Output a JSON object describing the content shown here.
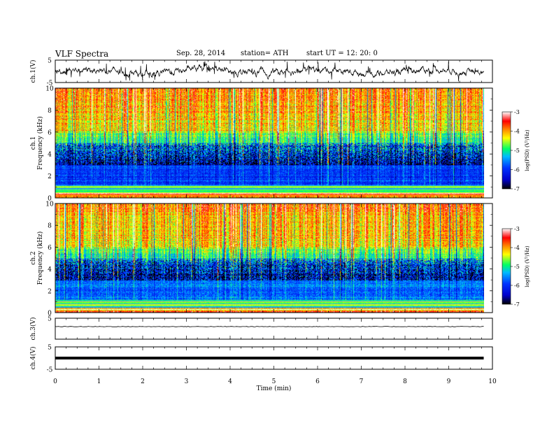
{
  "header": {
    "title": "VLF Spectra",
    "date": "Sep. 28, 2014",
    "station": "station= ATH",
    "start": "start  UT =   12: 20: 0"
  },
  "colors": {
    "spectrogram_scale": [
      "#000000",
      "#0000cc",
      "#0033ff",
      "#00bbff",
      "#00ff66",
      "#ffff00",
      "#ff8800",
      "#ff0000",
      "#ffffff"
    ],
    "trace": "#000000"
  },
  "chart_data": [
    {
      "type": "line",
      "panel": "ch1-waveform",
      "ylabel": "ch.1(V)",
      "ylim": [
        -5,
        5
      ],
      "yticks": [
        "5",
        "-5"
      ],
      "xlim": [
        0,
        10
      ],
      "series": [
        {
          "x": [
            0,
            9.8
          ],
          "mean_value": 0
        }
      ]
    },
    {
      "type": "heatmap",
      "panel": "ch1-spectrogram",
      "ylabel_top": "ch.1",
      "ylabel": "Frequency  (kHz)",
      "ylim": [
        0,
        10
      ],
      "yticks": [
        "0",
        "2",
        "4",
        "6",
        "8",
        "10"
      ],
      "xlim": [
        0,
        10
      ],
      "colorbar": {
        "label": "log(PSD) (V²/Hz)",
        "range": [
          -7,
          -3
        ],
        "ticks": [
          "-3",
          "-4",
          "-5",
          "-6",
          "-7"
        ]
      }
    },
    {
      "type": "heatmap",
      "panel": "ch2-spectrogram",
      "ylabel_top": "ch.2",
      "ylabel": "Frequency  (kHz)",
      "ylim": [
        0,
        10
      ],
      "yticks": [
        "0",
        "2",
        "4",
        "6",
        "8",
        "10"
      ],
      "xlim": [
        0,
        10
      ],
      "colorbar": {
        "label": "log(PSD) (V²/Hz)",
        "range": [
          -7,
          -3
        ],
        "ticks": [
          "-3",
          "-4",
          "-5",
          "-6",
          "-7"
        ]
      }
    },
    {
      "type": "line",
      "panel": "ch3-waveform",
      "ylabel": "ch.3(V)",
      "ylim": [
        -5,
        5
      ],
      "yticks": [
        "5"
      ],
      "xlim": [
        0,
        10
      ],
      "series": [
        {
          "x": [
            0,
            9.8
          ],
          "mean_value": 1
        }
      ]
    },
    {
      "type": "line",
      "panel": "ch4-waveform",
      "ylabel": "ch.4(V)",
      "ylim": [
        -5,
        5
      ],
      "yticks": [
        "5",
        "-5"
      ],
      "xlim": [
        0,
        10
      ],
      "xlabel": "Time  (min)",
      "xticks": [
        "0",
        "1",
        "2",
        "3",
        "4",
        "5",
        "6",
        "7",
        "8",
        "9",
        "10"
      ],
      "series": [
        {
          "x": [
            0,
            9.8
          ],
          "mean_value": 0
        }
      ]
    }
  ]
}
